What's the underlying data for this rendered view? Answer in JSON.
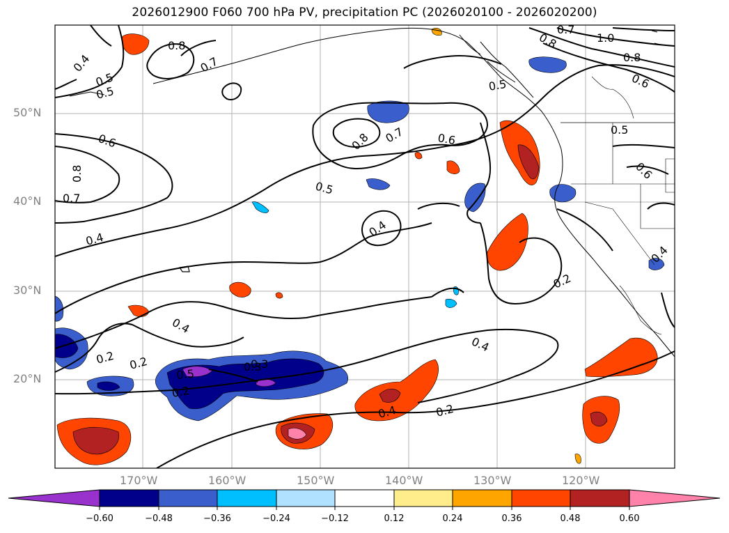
{
  "title": "2026012900 F060 700 hPa PV, precipitation PC (2026020100 - 2026020200)",
  "lat_labels": [
    "50°N",
    "40°N",
    "30°N",
    "20°N"
  ],
  "lon_labels": [
    "170°W",
    "160°W",
    "150°W",
    "140°W",
    "130°W",
    "120°W"
  ],
  "contour_labels": [
    "0.4",
    "0.5",
    "0.8",
    "0.7",
    "0.5",
    "0.6",
    "0.8",
    "0.7",
    "0.4",
    "0.7",
    "0.8",
    "0.6",
    "0.5",
    "0.4",
    "0.4",
    "0.2",
    "0.2",
    "0.3",
    "0.2",
    "0.4",
    "0.2",
    "0.8",
    "0.7",
    "0.6",
    "1.0",
    "0.8",
    "0.6",
    "0.5",
    "0.5",
    "0.4",
    "0.5",
    "0.2",
    "0.4",
    "0.3"
  ],
  "colorbar": {
    "ticks": [
      "−0.60",
      "−0.48",
      "−0.36",
      "−0.24",
      "−0.12",
      "0.12",
      "0.24",
      "0.36",
      "0.48",
      "0.60"
    ],
    "colors": [
      "#9932cc",
      "#00008b",
      "#3a5fcd",
      "#00bfff",
      "#b0e2ff",
      "#ffffff",
      "#ffec8b",
      "#ffa500",
      "#ff4500",
      "#b22222",
      "#ff82ab"
    ]
  }
}
